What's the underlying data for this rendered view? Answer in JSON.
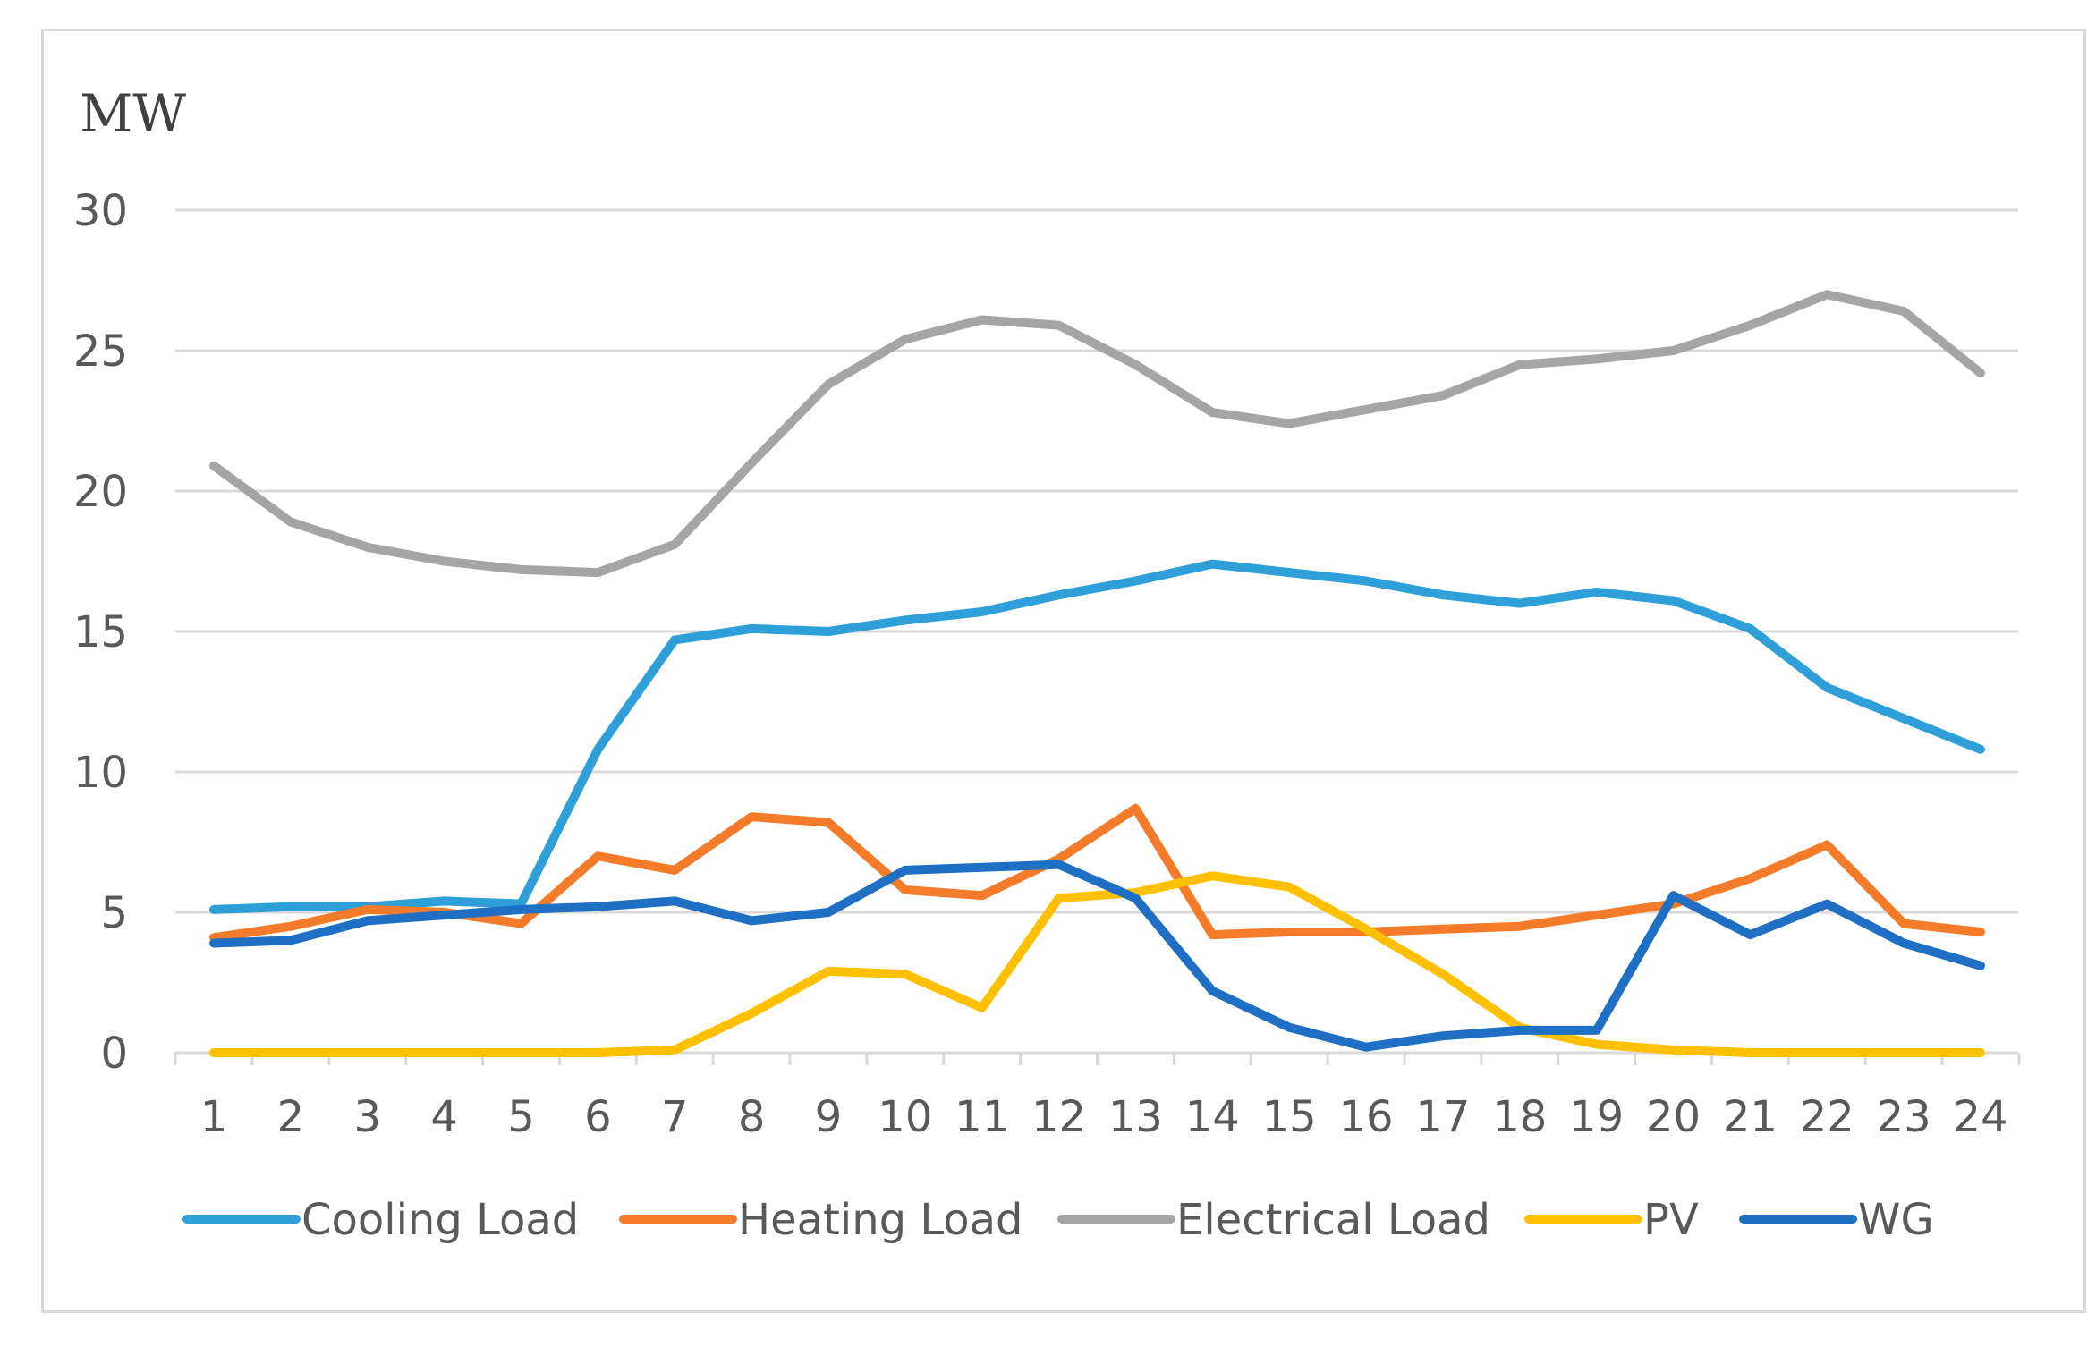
{
  "chart_data": {
    "type": "line",
    "ylabel": "MW",
    "ylim": [
      0,
      30
    ],
    "yticks": [
      0,
      5,
      10,
      15,
      20,
      25,
      30
    ],
    "grid": true,
    "legend": "bottom",
    "x": [
      "1",
      "2",
      "3",
      "4",
      "5",
      "6",
      "7",
      "8",
      "9",
      "10",
      "11",
      "12",
      "13",
      "14",
      "15",
      "16",
      "17",
      "18",
      "19",
      "20",
      "21",
      "22",
      "23",
      "24"
    ],
    "series": [
      {
        "name": "Cooling Load",
        "color": "#2e9fd9",
        "values": [
          5.1,
          5.2,
          5.2,
          5.4,
          5.3,
          10.8,
          14.7,
          15.1,
          15.0,
          15.4,
          15.7,
          16.3,
          16.8,
          17.4,
          17.1,
          16.8,
          16.3,
          16.0,
          16.4,
          16.1,
          15.1,
          13.0,
          11.9,
          10.8
        ]
      },
      {
        "name": "Heating Load",
        "color": "#f47b2a",
        "values": [
          4.1,
          4.5,
          5.1,
          5.0,
          4.6,
          7.0,
          6.5,
          8.4,
          8.2,
          5.8,
          5.6,
          6.9,
          8.7,
          4.2,
          4.3,
          4.3,
          4.4,
          4.5,
          4.9,
          5.3,
          6.2,
          7.4,
          4.6,
          4.3
        ]
      },
      {
        "name": "Electrical Load",
        "color": "#a5a5a5",
        "values": [
          20.9,
          18.9,
          18.0,
          17.5,
          17.2,
          17.1,
          18.1,
          21.0,
          23.8,
          25.4,
          26.1,
          25.9,
          24.5,
          22.8,
          22.4,
          22.9,
          23.4,
          24.5,
          24.7,
          25.0,
          25.9,
          27.0,
          26.4,
          24.2
        ]
      },
      {
        "name": "PV",
        "color": "#ffc000",
        "values": [
          0,
          0,
          0,
          0,
          0,
          0,
          0.1,
          1.4,
          2.9,
          2.8,
          1.6,
          5.5,
          5.7,
          6.3,
          5.9,
          4.4,
          2.8,
          0.9,
          0.3,
          0.1,
          0,
          0,
          0,
          0
        ]
      },
      {
        "name": "WG",
        "color": "#1f6fc5",
        "values": [
          3.9,
          4.0,
          4.7,
          4.9,
          5.1,
          5.2,
          5.4,
          4.7,
          5.0,
          6.5,
          6.6,
          6.7,
          5.5,
          2.2,
          0.9,
          0.2,
          0.6,
          0.8,
          0.8,
          5.6,
          4.2,
          5.3,
          3.9,
          3.1
        ]
      }
    ]
  }
}
